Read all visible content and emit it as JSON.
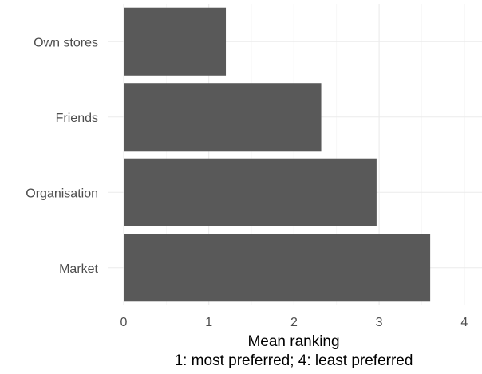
{
  "chart_data": {
    "type": "bar",
    "orientation": "horizontal",
    "categories": [
      "Own stores",
      "Friends",
      "Organisation",
      "Market"
    ],
    "values": [
      1.2,
      2.32,
      2.97,
      3.6
    ],
    "xlim": [
      0,
      4.15
    ],
    "xticks": [
      "0",
      "1",
      "2",
      "3",
      "4"
    ],
    "xlabel_line1": "Mean ranking",
    "xlabel_line2": "1: most preferred; 4: least preferred",
    "ylabel": "",
    "grid": true,
    "bar_color": "#595959",
    "theme": "minimal"
  }
}
